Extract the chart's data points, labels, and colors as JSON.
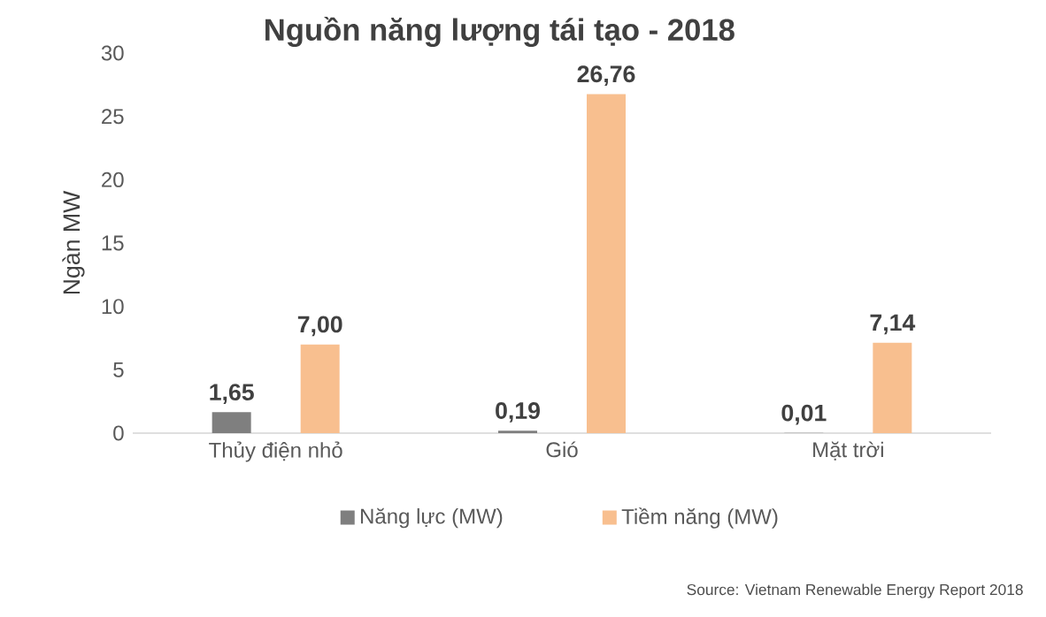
{
  "chart_data": {
    "type": "bar",
    "title": "Nguồn năng lượng tái tạo - 2018",
    "ylabel": "Ngàn MW",
    "categories": [
      "Thủy điện nhỏ",
      "Gió",
      "Mặt trời"
    ],
    "series": [
      {
        "name": "Năng lực (MW)",
        "color": "#7f7f7f",
        "values": [
          1.65,
          0.19,
          0.01
        ],
        "value_labels": [
          "1,65",
          "0,19",
          "0,01"
        ]
      },
      {
        "name": "Tiềm năng (MW)",
        "color": "#f8bf8f",
        "values": [
          7.0,
          26.76,
          7.14
        ],
        "value_labels": [
          "7,00",
          "26,76",
          "7,14"
        ]
      }
    ],
    "ylim": [
      0,
      30
    ],
    "yticks": [
      0,
      5,
      10,
      15,
      20,
      25,
      30
    ],
    "grid": false,
    "legend": "bottom",
    "annotations": [
      "Source: Vietnam Renewable Energy Report 2018"
    ]
  }
}
